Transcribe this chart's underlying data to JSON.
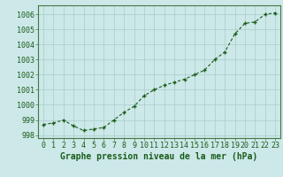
{
  "x": [
    0,
    1,
    2,
    3,
    4,
    5,
    6,
    7,
    8,
    9,
    10,
    11,
    12,
    13,
    14,
    15,
    16,
    17,
    18,
    19,
    20,
    21,
    22,
    23
  ],
  "y": [
    998.7,
    998.8,
    999.0,
    998.6,
    998.3,
    998.4,
    998.5,
    999.0,
    999.5,
    999.9,
    1000.6,
    1001.0,
    1001.3,
    1001.5,
    1001.7,
    1002.0,
    1002.3,
    1003.0,
    1003.5,
    1004.7,
    1005.4,
    1005.5,
    1006.0,
    1006.1
  ],
  "line_color": "#1a5c1a",
  "marker_color": "#1a5c1a",
  "bg_color": "#cce8e8",
  "grid_color": "#aacccc",
  "xlabel": "Graphe pression niveau de la mer (hPa)",
  "ylim": [
    997.8,
    1006.6
  ],
  "xlim": [
    -0.5,
    23.5
  ],
  "yticks": [
    998,
    999,
    1000,
    1001,
    1002,
    1003,
    1004,
    1005,
    1006
  ],
  "xticks": [
    0,
    1,
    2,
    3,
    4,
    5,
    6,
    7,
    8,
    9,
    10,
    11,
    12,
    13,
    14,
    15,
    16,
    17,
    18,
    19,
    20,
    21,
    22,
    23
  ],
  "title_fontsize": 7,
  "tick_fontsize": 6,
  "title_color": "#1a5c1a",
  "tick_color": "#1a5c1a",
  "spine_color": "#447744"
}
